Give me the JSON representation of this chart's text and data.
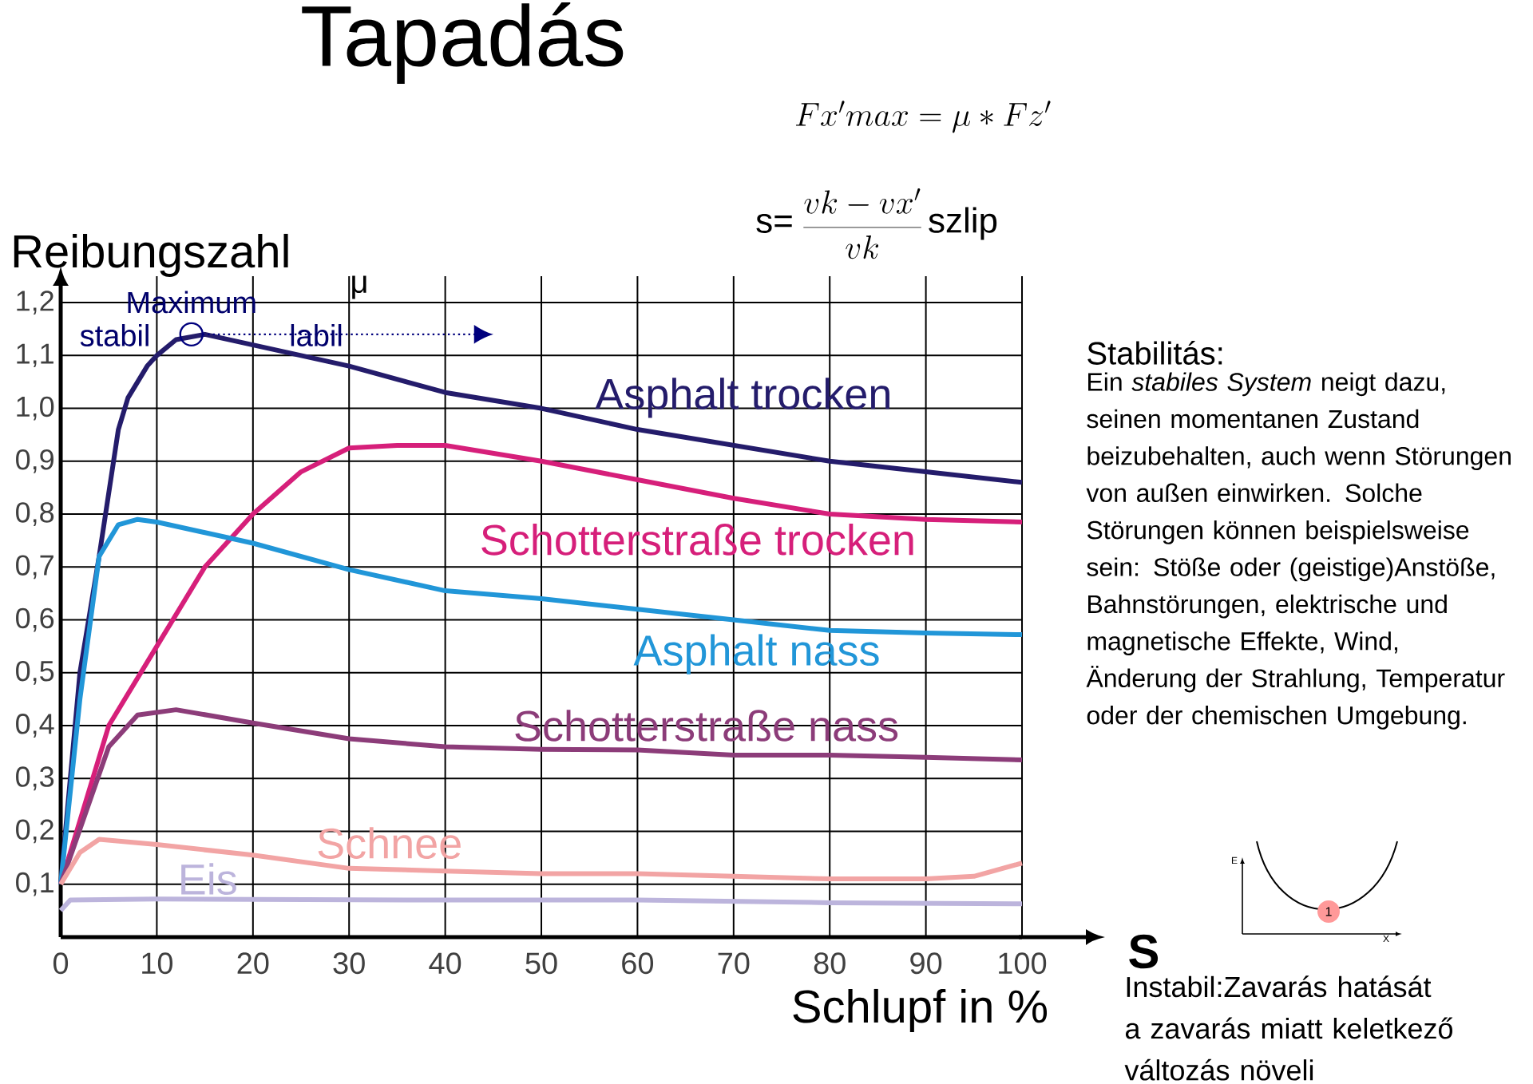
{
  "chart_data": {
    "type": "line",
    "title": "Tapadás",
    "xlabel": "Schlupf in %",
    "ylabel": "Reibungszahl",
    "xlim": [
      0,
      100
    ],
    "ylim": [
      0,
      1.25
    ],
    "xticks": [
      0,
      10,
      20,
      30,
      40,
      50,
      60,
      70,
      80,
      90,
      100
    ],
    "yticks": [
      {
        "value": 0.1,
        "label": "0,1"
      },
      {
        "value": 0.2,
        "label": "0,2"
      },
      {
        "value": 0.3,
        "label": "0,3"
      },
      {
        "value": 0.4,
        "label": "0,4"
      },
      {
        "value": 0.5,
        "label": "0,5"
      },
      {
        "value": 0.6,
        "label": "0,6"
      },
      {
        "value": 0.7,
        "label": "0,7"
      },
      {
        "value": 0.8,
        "label": "0,8"
      },
      {
        "value": 0.9,
        "label": "0,9"
      },
      {
        "value": 1.0,
        "label": "1,0"
      },
      {
        "value": 1.1,
        "label": "1,1"
      },
      {
        "value": 1.2,
        "label": "1,2"
      }
    ],
    "grid": true,
    "marker": "none",
    "line_style": "solid",
    "series": [
      {
        "name": "Asphalt trocken",
        "color": "#241c6b",
        "x": [
          0,
          0.5,
          2,
          4,
          6,
          7,
          9,
          10,
          12,
          15,
          20,
          30,
          40,
          50,
          60,
          70,
          80,
          90,
          100
        ],
        "values": [
          0.1,
          0.2,
          0.5,
          0.72,
          0.96,
          1.02,
          1.08,
          1.1,
          1.13,
          1.14,
          1.12,
          1.08,
          1.03,
          1.0,
          0.96,
          0.93,
          0.9,
          0.88,
          0.86
        ]
      },
      {
        "name": "Schotterstraße trocken",
        "color": "#d61f7a",
        "x": [
          0,
          5,
          10,
          15,
          20,
          25,
          30,
          35,
          40,
          45,
          50,
          60,
          70,
          80,
          90,
          100
        ],
        "values": [
          0.1,
          0.4,
          0.55,
          0.7,
          0.8,
          0.88,
          0.925,
          0.93,
          0.93,
          0.915,
          0.9,
          0.865,
          0.83,
          0.8,
          0.79,
          0.785
        ]
      },
      {
        "name": "Asphalt nass",
        "color": "#2196d8",
        "x": [
          0,
          2,
          4,
          6,
          8,
          10,
          20,
          30,
          40,
          50,
          60,
          70,
          80,
          90,
          100
        ],
        "values": [
          0.1,
          0.45,
          0.72,
          0.78,
          0.79,
          0.785,
          0.745,
          0.695,
          0.655,
          0.64,
          0.62,
          0.6,
          0.58,
          0.575,
          0.572
        ]
      },
      {
        "name": "Schotterstraße nass",
        "color": "#8c3c79",
        "x": [
          0,
          5,
          8,
          12,
          20,
          30,
          40,
          50,
          60,
          70,
          80,
          90,
          100
        ],
        "values": [
          0.1,
          0.36,
          0.42,
          0.43,
          0.405,
          0.375,
          0.36,
          0.355,
          0.354,
          0.344,
          0.344,
          0.34,
          0.335
        ]
      },
      {
        "name": "Schnee",
        "color": "#f2a4a4",
        "x": [
          0,
          2,
          4,
          10,
          20,
          30,
          40,
          50,
          60,
          70,
          80,
          90,
          95,
          100
        ],
        "values": [
          0.1,
          0.16,
          0.185,
          0.175,
          0.155,
          0.13,
          0.125,
          0.12,
          0.12,
          0.115,
          0.11,
          0.11,
          0.115,
          0.14
        ]
      },
      {
        "name": "Eis",
        "color": "#bcb4dc",
        "x": [
          0,
          1,
          10,
          40,
          60,
          80,
          100
        ],
        "values": [
          0.05,
          0.07,
          0.072,
          0.07,
          0.07,
          0.065,
          0.063
        ]
      }
    ],
    "annotations": [
      "Fx'max = \\mu * Fz'",
      "s=",
      "\\frac{vk-vx'}{vk}",
      "szlip",
      {
        "text": "Maximum",
        "x": 13.6,
        "y": 1.14
      },
      "stabil",
      "labil",
      "μ",
      "Stabilitás:",
      "Ein *stabiles System* neigt dazu, seinen momentanen Zustand beizubehalten, auch wenn Störungen von außen einwirken. Solche Störungen können beispielsweise sein: Stöße oder (geistige)Anstöße, Bahnstörungen, elektrische und magnetische Effekte, Wind, Änderung der Strahlung, Temperatur oder der chemischen Umgebung.",
      "S",
      "Instabil:Zavarás hatását a zavarás miatt keletkező változás növeli",
      "E",
      "X",
      "1"
    ]
  }
}
